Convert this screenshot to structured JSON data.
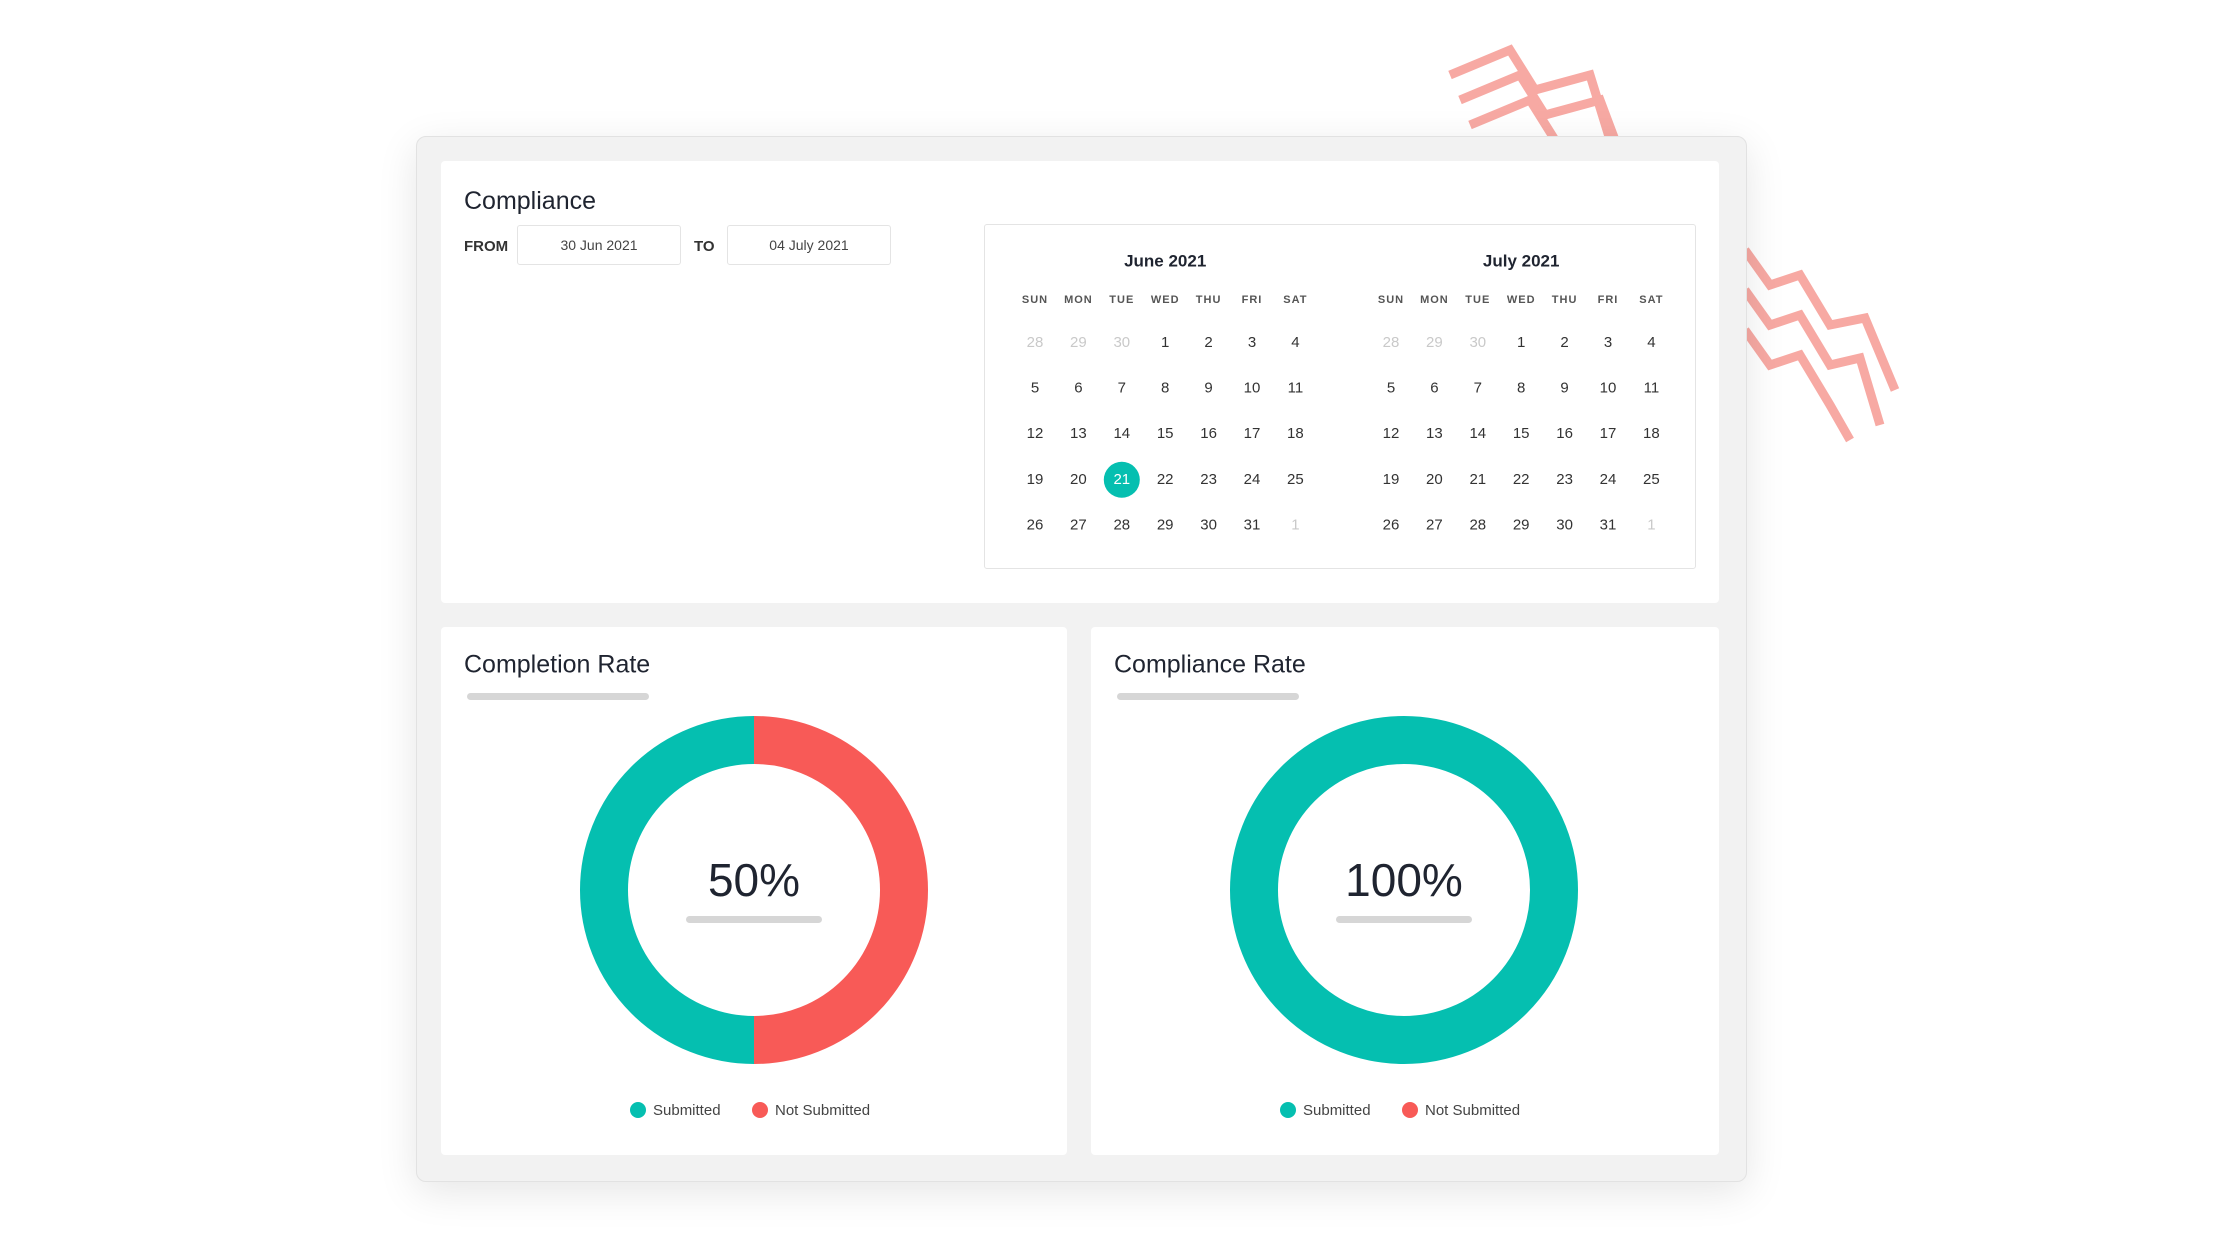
{
  "compliance": {
    "title": "Compliance",
    "from_label": "FROM",
    "from_value": "30 Jun 2021",
    "to_label": "TO",
    "to_value": "04 July 2021"
  },
  "calendars": [
    {
      "title": "June 2021",
      "weekdays": [
        "SUN",
        "MON",
        "TUE",
        "WED",
        "THU",
        "FRI",
        "SAT"
      ],
      "selected": 21,
      "weeks": [
        [
          28,
          29,
          30,
          1,
          2,
          3,
          4
        ],
        [
          5,
          6,
          7,
          8,
          9,
          10,
          11
        ],
        [
          12,
          13,
          14,
          15,
          16,
          17,
          18
        ],
        [
          19,
          20,
          21,
          22,
          23,
          24,
          25
        ],
        [
          26,
          27,
          28,
          29,
          30,
          31,
          1
        ]
      ]
    },
    {
      "title": "July 2021",
      "weekdays": [
        "SUN",
        "MON",
        "TUE",
        "WED",
        "THU",
        "FRI",
        "SAT"
      ],
      "weeks": [
        [
          28,
          29,
          30,
          1,
          2,
          3,
          4
        ],
        [
          5,
          6,
          7,
          8,
          9,
          10,
          11
        ],
        [
          12,
          13,
          14,
          15,
          16,
          17,
          18
        ],
        [
          19,
          20,
          21,
          22,
          23,
          24,
          25
        ],
        [
          26,
          27,
          28,
          29,
          30,
          31,
          1
        ]
      ]
    }
  ],
  "chart_data": [
    {
      "type": "donut",
      "title": "Completion Rate",
      "categories": [
        "Submitted",
        "Not Submitted"
      ],
      "colors": [
        "#05bfb0",
        "#f85a57"
      ],
      "values": [
        50,
        50
      ],
      "center_label": "50%"
    },
    {
      "type": "donut",
      "title": "Compliance Rate",
      "categories": [
        "Submitted",
        "Not Submitted"
      ],
      "colors": [
        "#05bfb0",
        "#f85a57"
      ],
      "values": [
        100,
        0
      ],
      "center_label": "100%"
    }
  ]
}
